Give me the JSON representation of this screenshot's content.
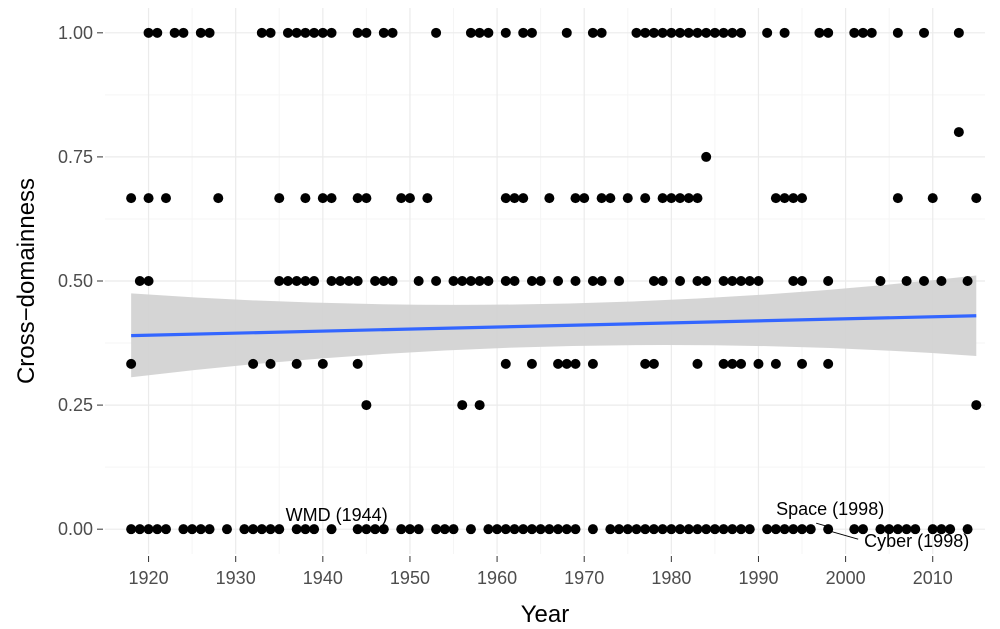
{
  "chart_data": {
    "type": "scatter",
    "title": "",
    "xlabel": "Year",
    "ylabel": "Cross−domainness",
    "xlim": [
      1915,
      2016
    ],
    "ylim": [
      -0.05,
      1.05
    ],
    "x_ticks": [
      1920,
      1930,
      1940,
      1950,
      1960,
      1970,
      1980,
      1990,
      2000,
      2010
    ],
    "x_tick_labels": [
      "1920",
      "1930",
      "1940",
      "1950",
      "1960",
      "1970",
      "1980",
      "1990",
      "2000",
      "2010"
    ],
    "y_ticks": [
      0.0,
      0.25,
      0.5,
      0.75,
      1.0
    ],
    "y_tick_labels": [
      "0.00",
      "0.25",
      "0.50",
      "0.75",
      "1.00"
    ],
    "grid": true,
    "legend": "none",
    "colors": {
      "points": "#000000",
      "trend_line": "#3366ff",
      "confidence_band": "#d3d3d3",
      "grid_major": "#ebebeb",
      "grid_minor": "#f5f5f5",
      "tick_text": "#4d4d4d"
    },
    "trend": {
      "method": "linear",
      "x": [
        1918,
        2015
      ],
      "y": [
        0.39,
        0.43
      ],
      "ci_lower": [
        0.306,
        0.349
      ],
      "ci_upper": [
        0.475,
        0.511
      ]
    },
    "series": [
      {
        "points": [
          [
            1918,
            0
          ],
          [
            1919,
            0
          ],
          [
            1920,
            0
          ],
          [
            1921,
            0
          ],
          [
            1922,
            0
          ],
          [
            1924,
            0
          ],
          [
            1925,
            0
          ],
          [
            1926,
            0
          ],
          [
            1927,
            0
          ],
          [
            1929,
            0
          ],
          [
            1931,
            0
          ],
          [
            1932,
            0
          ],
          [
            1933,
            0
          ],
          [
            1934,
            0
          ],
          [
            1935,
            0
          ],
          [
            1937,
            0
          ],
          [
            1938,
            0
          ],
          [
            1939,
            0
          ],
          [
            1941,
            0
          ],
          [
            1944,
            0
          ],
          [
            1945,
            0
          ],
          [
            1946,
            0
          ],
          [
            1947,
            0
          ],
          [
            1949,
            0
          ],
          [
            1950,
            0
          ],
          [
            1951,
            0
          ],
          [
            1953,
            0
          ],
          [
            1954,
            0
          ],
          [
            1955,
            0
          ],
          [
            1957,
            0
          ],
          [
            1959,
            0
          ],
          [
            1960,
            0
          ],
          [
            1961,
            0
          ],
          [
            1962,
            0
          ],
          [
            1963,
            0
          ],
          [
            1964,
            0
          ],
          [
            1965,
            0
          ],
          [
            1966,
            0
          ],
          [
            1967,
            0
          ],
          [
            1968,
            0
          ],
          [
            1969,
            0
          ],
          [
            1971,
            0
          ],
          [
            1973,
            0
          ],
          [
            1974,
            0
          ],
          [
            1975,
            0
          ],
          [
            1976,
            0
          ],
          [
            1977,
            0
          ],
          [
            1978,
            0
          ],
          [
            1979,
            0
          ],
          [
            1980,
            0
          ],
          [
            1981,
            0
          ],
          [
            1982,
            0
          ],
          [
            1983,
            0
          ],
          [
            1984,
            0
          ],
          [
            1985,
            0
          ],
          [
            1986,
            0
          ],
          [
            1987,
            0
          ],
          [
            1988,
            0
          ],
          [
            1989,
            0
          ],
          [
            1991,
            0
          ],
          [
            1992,
            0
          ],
          [
            1993,
            0
          ],
          [
            1994,
            0
          ],
          [
            1995,
            0
          ],
          [
            1996,
            0
          ],
          [
            1998,
            0
          ],
          [
            2001,
            0
          ],
          [
            2002,
            0
          ],
          [
            2004,
            0
          ],
          [
            2005,
            0
          ],
          [
            2006,
            0
          ],
          [
            2007,
            0
          ],
          [
            2008,
            0
          ],
          [
            2010,
            0
          ],
          [
            2011,
            0
          ],
          [
            2012,
            0
          ],
          [
            2014,
            0
          ],
          [
            1956,
            0.25
          ],
          [
            1958,
            0.25
          ],
          [
            1945,
            0.25
          ],
          [
            2015,
            0.25
          ],
          [
            1918,
            0.333
          ],
          [
            1932,
            0.333
          ],
          [
            1934,
            0.333
          ],
          [
            1937,
            0.333
          ],
          [
            1940,
            0.333
          ],
          [
            1944,
            0.333
          ],
          [
            1961,
            0.333
          ],
          [
            1964,
            0.333
          ],
          [
            1967,
            0.333
          ],
          [
            1968,
            0.333
          ],
          [
            1969,
            0.333
          ],
          [
            1971,
            0.333
          ],
          [
            1977,
            0.333
          ],
          [
            1978,
            0.333
          ],
          [
            1983,
            0.333
          ],
          [
            1986,
            0.333
          ],
          [
            1987,
            0.333
          ],
          [
            1988,
            0.333
          ],
          [
            1990,
            0.333
          ],
          [
            1992,
            0.333
          ],
          [
            1995,
            0.333
          ],
          [
            1998,
            0.333
          ],
          [
            1919,
            0.5
          ],
          [
            1920,
            0.5
          ],
          [
            1935,
            0.5
          ],
          [
            1936,
            0.5
          ],
          [
            1937,
            0.5
          ],
          [
            1938,
            0.5
          ],
          [
            1939,
            0.5
          ],
          [
            1941,
            0.5
          ],
          [
            1942,
            0.5
          ],
          [
            1943,
            0.5
          ],
          [
            1944,
            0.5
          ],
          [
            1946,
            0.5
          ],
          [
            1947,
            0.5
          ],
          [
            1948,
            0.5
          ],
          [
            1951,
            0.5
          ],
          [
            1953,
            0.5
          ],
          [
            1955,
            0.5
          ],
          [
            1956,
            0.5
          ],
          [
            1957,
            0.5
          ],
          [
            1958,
            0.5
          ],
          [
            1959,
            0.5
          ],
          [
            1961,
            0.5
          ],
          [
            1962,
            0.5
          ],
          [
            1964,
            0.5
          ],
          [
            1965,
            0.5
          ],
          [
            1967,
            0.5
          ],
          [
            1969,
            0.5
          ],
          [
            1971,
            0.5
          ],
          [
            1972,
            0.5
          ],
          [
            1974,
            0.5
          ],
          [
            1978,
            0.5
          ],
          [
            1979,
            0.5
          ],
          [
            1981,
            0.5
          ],
          [
            1983,
            0.5
          ],
          [
            1984,
            0.5
          ],
          [
            1986,
            0.5
          ],
          [
            1987,
            0.5
          ],
          [
            1988,
            0.5
          ],
          [
            1989,
            0.5
          ],
          [
            1990,
            0.5
          ],
          [
            1994,
            0.5
          ],
          [
            1995,
            0.5
          ],
          [
            1998,
            0.5
          ],
          [
            2004,
            0.5
          ],
          [
            2007,
            0.5
          ],
          [
            2009,
            0.5
          ],
          [
            2011,
            0.5
          ],
          [
            2014,
            0.5
          ],
          [
            1918,
            0.667
          ],
          [
            1920,
            0.667
          ],
          [
            1922,
            0.667
          ],
          [
            1928,
            0.667
          ],
          [
            1935,
            0.667
          ],
          [
            1938,
            0.667
          ],
          [
            1940,
            0.667
          ],
          [
            1941,
            0.667
          ],
          [
            1944,
            0.667
          ],
          [
            1945,
            0.667
          ],
          [
            1949,
            0.667
          ],
          [
            1950,
            0.667
          ],
          [
            1952,
            0.667
          ],
          [
            1961,
            0.667
          ],
          [
            1962,
            0.667
          ],
          [
            1963,
            0.667
          ],
          [
            1966,
            0.667
          ],
          [
            1969,
            0.667
          ],
          [
            1970,
            0.667
          ],
          [
            1972,
            0.667
          ],
          [
            1973,
            0.667
          ],
          [
            1975,
            0.667
          ],
          [
            1977,
            0.667
          ],
          [
            1979,
            0.667
          ],
          [
            1980,
            0.667
          ],
          [
            1981,
            0.667
          ],
          [
            1982,
            0.667
          ],
          [
            1983,
            0.667
          ],
          [
            1992,
            0.667
          ],
          [
            1993,
            0.667
          ],
          [
            1994,
            0.667
          ],
          [
            1995,
            0.667
          ],
          [
            2006,
            0.667
          ],
          [
            2010,
            0.667
          ],
          [
            2015,
            0.667
          ],
          [
            1984,
            0.75
          ],
          [
            2013,
            0.8
          ],
          [
            1920,
            1
          ],
          [
            1921,
            1
          ],
          [
            1923,
            1
          ],
          [
            1924,
            1
          ],
          [
            1926,
            1
          ],
          [
            1927,
            1
          ],
          [
            1933,
            1
          ],
          [
            1934,
            1
          ],
          [
            1936,
            1
          ],
          [
            1937,
            1
          ],
          [
            1938,
            1
          ],
          [
            1939,
            1
          ],
          [
            1940,
            1
          ],
          [
            1941,
            1
          ],
          [
            1944,
            1
          ],
          [
            1945,
            1
          ],
          [
            1947,
            1
          ],
          [
            1948,
            1
          ],
          [
            1953,
            1
          ],
          [
            1957,
            1
          ],
          [
            1958,
            1
          ],
          [
            1959,
            1
          ],
          [
            1961,
            1
          ],
          [
            1963,
            1
          ],
          [
            1964,
            1
          ],
          [
            1968,
            1
          ],
          [
            1971,
            1
          ],
          [
            1972,
            1
          ],
          [
            1976,
            1
          ],
          [
            1977,
            1
          ],
          [
            1978,
            1
          ],
          [
            1979,
            1
          ],
          [
            1980,
            1
          ],
          [
            1981,
            1
          ],
          [
            1982,
            1
          ],
          [
            1983,
            1
          ],
          [
            1984,
            1
          ],
          [
            1985,
            1
          ],
          [
            1986,
            1
          ],
          [
            1987,
            1
          ],
          [
            1988,
            1
          ],
          [
            1991,
            1
          ],
          [
            1993,
            1
          ],
          [
            1997,
            1
          ],
          [
            1998,
            1
          ],
          [
            2001,
            1
          ],
          [
            2002,
            1
          ],
          [
            2003,
            1
          ],
          [
            2006,
            1
          ],
          [
            2009,
            1
          ],
          [
            2013,
            1
          ]
        ]
      }
    ],
    "annotations": [
      {
        "text": "WMD (1944)",
        "x": 1944,
        "y": 0
      },
      {
        "text": "Space (1998)",
        "x": 1998,
        "y": 0
      },
      {
        "text": "Cyber (1998)",
        "x": 1998,
        "y": 0
      }
    ]
  }
}
